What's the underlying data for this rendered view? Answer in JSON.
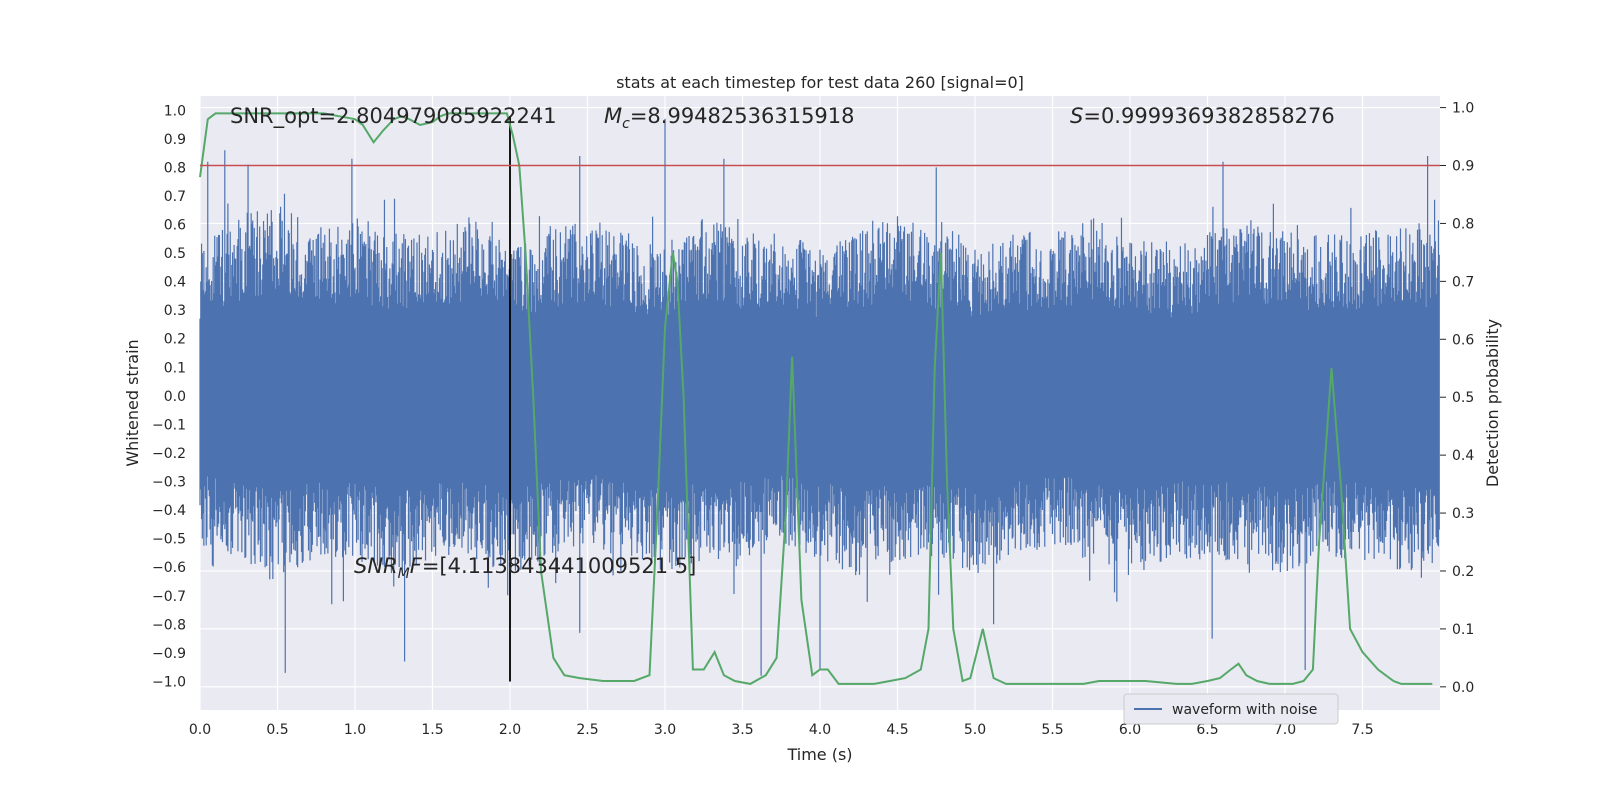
{
  "chart_data": {
    "type": "line",
    "title": "stats at each timestep for test data 260 [signal=0]",
    "xlabel": "Time (s)",
    "ylabel_left": "Whitened strain",
    "ylabel_right": "Detection probability",
    "xlim": [
      0,
      8
    ],
    "ylim_left": [
      -1.1,
      1.05
    ],
    "ylim_right": [
      -0.04,
      1.02
    ],
    "x_ticks": [
      "0.0",
      "0.5",
      "1.0",
      "1.5",
      "2.0",
      "2.5",
      "3.0",
      "3.5",
      "4.0",
      "4.5",
      "5.0",
      "5.5",
      "6.0",
      "6.5",
      "7.0",
      "7.5"
    ],
    "y_left_ticks": [
      "1.0",
      "0.9",
      "0.8",
      "0.7",
      "0.6",
      "0.5",
      "0.4",
      "0.3",
      "0.2",
      "0.1",
      "0.0",
      "-0.1",
      "-0.2",
      "-0.3",
      "-0.4",
      "-0.5",
      "-0.6",
      "-0.7",
      "-0.8",
      "-0.9",
      "-1.0"
    ],
    "y_right_ticks": [
      "1.0",
      "0.9",
      "0.8",
      "0.7",
      "0.6",
      "0.5",
      "0.4",
      "0.3",
      "0.2",
      "0.1",
      "0.0"
    ],
    "grid": true,
    "legend_position": "lower-right",
    "annotations": {
      "snr_opt": "SNR_opt=2.804979085922241",
      "mc_symbol": "M",
      "mc_sub": "c",
      "mc_value": "=8.99482536315918",
      "s_symbol": "S",
      "s_value": "=0.9999369382858276",
      "snr_mf_symbol": "SNR",
      "snr_mf_sub": "M",
      "snr_mf_rest": "F",
      "snr_mf_value": "=[4.113843441009521 5]"
    },
    "threshold_right": 0.9,
    "marker_time": 2.0,
    "series": [
      {
        "name": "waveform with noise",
        "axis": "left",
        "color": "#4c72b0",
        "noise_envelope_top": [
          0.45,
          0.55,
          0.6,
          0.5,
          0.55,
          0.5,
          0.5,
          0.55,
          0.45,
          0.5,
          0.55,
          0.5,
          0.45,
          0.55,
          0.5,
          0.5,
          0.45,
          0.5,
          0.55,
          0.5,
          0.45,
          0.5,
          0.5,
          0.55,
          0.5,
          0.45,
          0.5,
          0.55,
          0.5,
          0.5,
          0.5,
          0.55,
          0.5
        ],
        "noise_envelope_bottom": [
          -0.45,
          -0.5,
          -0.55,
          -0.5,
          -0.5,
          -0.55,
          -0.5,
          -0.5,
          -0.55,
          -0.5,
          -0.45,
          -0.5,
          -0.55,
          -0.5,
          -0.5,
          -0.45,
          -0.5,
          -0.55,
          -0.5,
          -0.5,
          -0.55,
          -0.5,
          -0.45,
          -0.5,
          -0.55,
          -0.5,
          -0.5,
          -0.5,
          -0.55,
          -0.5,
          -0.5,
          -0.55,
          -0.5
        ],
        "peaks": [
          {
            "x": 0.05,
            "y": 0.82
          },
          {
            "x": 0.16,
            "y": 0.86
          },
          {
            "x": 0.31,
            "y": 0.81
          },
          {
            "x": 0.55,
            "y": -0.97
          },
          {
            "x": 0.98,
            "y": 0.83
          },
          {
            "x": 1.32,
            "y": -0.93
          },
          {
            "x": 2.45,
            "y": 0.84
          },
          {
            "x": 3.0,
            "y": 0.97
          },
          {
            "x": 3.38,
            "y": 0.83
          },
          {
            "x": 3.62,
            "y": -0.98
          },
          {
            "x": 4.0,
            "y": -0.96
          },
          {
            "x": 4.75,
            "y": 0.8
          },
          {
            "x": 6.53,
            "y": -0.85
          },
          {
            "x": 6.6,
            "y": 0.82
          },
          {
            "x": 7.13,
            "y": -0.96
          },
          {
            "x": 7.92,
            "y": 0.84
          },
          {
            "x": 0.85,
            "y": -0.73
          },
          {
            "x": 2.45,
            "y": -0.83
          },
          {
            "x": 5.12,
            "y": -0.8
          }
        ]
      },
      {
        "name": "Detection probability",
        "axis": "right",
        "color": "#55a868",
        "x": [
          0.0,
          0.05,
          0.1,
          0.2,
          0.3,
          0.5,
          0.7,
          0.8,
          0.9,
          1.0,
          1.05,
          1.12,
          1.18,
          1.25,
          1.3,
          1.35,
          1.42,
          1.5,
          1.55,
          1.6,
          1.7,
          1.8,
          1.9,
          1.98,
          2.02,
          2.06,
          2.1,
          2.15,
          2.2,
          2.28,
          2.35,
          2.45,
          2.6,
          2.7,
          2.8,
          2.9,
          2.95,
          3.0,
          3.05,
          3.08,
          3.12,
          3.18,
          3.25,
          3.32,
          3.38,
          3.45,
          3.55,
          3.65,
          3.72,
          3.78,
          3.82,
          3.88,
          3.95,
          4.0,
          4.05,
          4.12,
          4.2,
          4.35,
          4.45,
          4.55,
          4.65,
          4.7,
          4.74,
          4.78,
          4.82,
          4.86,
          4.92,
          4.97,
          5.05,
          5.12,
          5.2,
          5.3,
          5.5,
          5.7,
          5.8,
          5.88,
          5.95,
          6.1,
          6.3,
          6.4,
          6.5,
          6.58,
          6.65,
          6.7,
          6.75,
          6.82,
          6.9,
          7.05,
          7.12,
          7.18,
          7.22,
          7.26,
          7.3,
          7.36,
          7.42,
          7.5,
          7.6,
          7.7,
          7.75,
          7.8,
          7.95
        ],
        "y": [
          0.88,
          0.98,
          0.99,
          0.99,
          0.99,
          0.99,
          0.99,
          0.99,
          0.985,
          0.98,
          0.97,
          0.94,
          0.96,
          0.98,
          0.985,
          0.98,
          0.97,
          0.975,
          0.985,
          0.99,
          0.99,
          0.99,
          0.99,
          0.99,
          0.95,
          0.9,
          0.75,
          0.5,
          0.2,
          0.05,
          0.02,
          0.015,
          0.01,
          0.01,
          0.01,
          0.02,
          0.3,
          0.62,
          0.75,
          0.7,
          0.5,
          0.03,
          0.03,
          0.06,
          0.02,
          0.01,
          0.005,
          0.02,
          0.05,
          0.3,
          0.57,
          0.15,
          0.02,
          0.03,
          0.03,
          0.005,
          0.005,
          0.005,
          0.01,
          0.015,
          0.03,
          0.1,
          0.55,
          0.75,
          0.35,
          0.1,
          0.01,
          0.015,
          0.1,
          0.015,
          0.005,
          0.005,
          0.005,
          0.005,
          0.01,
          0.01,
          0.01,
          0.01,
          0.005,
          0.005,
          0.01,
          0.015,
          0.03,
          0.04,
          0.02,
          0.01,
          0.005,
          0.005,
          0.01,
          0.03,
          0.25,
          0.4,
          0.55,
          0.35,
          0.1,
          0.06,
          0.03,
          0.01,
          0.005,
          0.005,
          0.005
        ]
      }
    ]
  }
}
